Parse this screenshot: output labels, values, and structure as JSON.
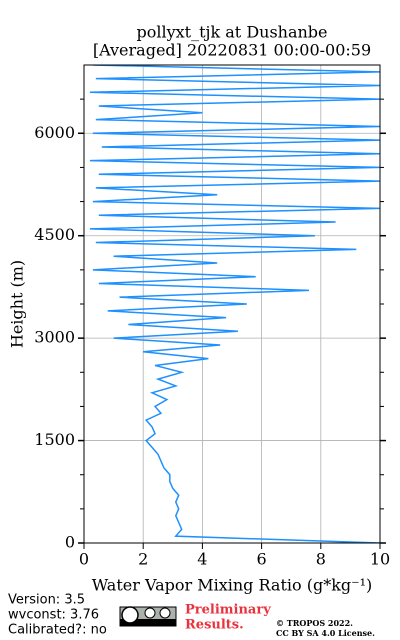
{
  "chart_data": {
    "type": "line",
    "title": "pollyxt_tjk at Dushanbe",
    "subtitle": "[Averaged] 20220831 00:00-00:59",
    "xlabel": "Water Vapor Mixing Ratio (g*kg⁻¹)",
    "ylabel": "Height (m)",
    "xlim": [
      0,
      10
    ],
    "xticks": [
      0,
      2,
      4,
      6,
      8,
      10
    ],
    "ylim": [
      0,
      7000
    ],
    "yticks": [
      0,
      1500,
      3000,
      4500,
      6000
    ],
    "yminorticks": [
      500,
      1000,
      2000,
      2500,
      3500,
      4000,
      5000,
      5500,
      6500
    ],
    "grid": true,
    "color": "#1e90ff",
    "heights": [
      0,
      100,
      200,
      300,
      400,
      500,
      600,
      700,
      800,
      900,
      1000,
      1100,
      1200,
      1300,
      1400,
      1500,
      1600,
      1700,
      1800,
      1900,
      2000,
      2100,
      2200,
      2300,
      2400,
      2500,
      2600,
      2700,
      2800,
      2900,
      3000,
      3100,
      3200,
      3300,
      3400,
      3500,
      3600,
      3700,
      3800,
      3900,
      4000,
      4100,
      4200,
      4300,
      4400,
      4500,
      4600,
      4700,
      4800,
      4900,
      5000,
      5100,
      5200,
      5300,
      5400,
      5500,
      5600,
      5700,
      5800,
      5900,
      6000,
      6100,
      6200,
      6300,
      6400,
      6500,
      6600,
      6700,
      6800,
      6900,
      7000
    ],
    "values": [
      10,
      3.1,
      3.3,
      3.2,
      3.1,
      3.2,
      3.1,
      3.2,
      3.0,
      2.9,
      2.9,
      2.7,
      2.6,
      2.5,
      2.3,
      2.1,
      2.4,
      2.3,
      2.1,
      2.6,
      2.4,
      2.8,
      2.3,
      3.1,
      2.5,
      3.3,
      2.4,
      4.2,
      2.0,
      4.6,
      1.0,
      5.2,
      1.5,
      4.8,
      0.8,
      5.5,
      1.2,
      7.6,
      0.5,
      5.8,
      0.3,
      4.5,
      1.0,
      9.2,
      0.4,
      7.8,
      0.2,
      8.5,
      0.5,
      10,
      0.3,
      4.5,
      0.4,
      10,
      0.5,
      10,
      0.2,
      10,
      0.6,
      10,
      0.3,
      10,
      0.4,
      4.0,
      0.5,
      10,
      0.2,
      10,
      0.4,
      10,
      0.3
    ],
    "footer": {
      "version": "Version: 3.5",
      "wvconst": "wvconst:   3.76",
      "calibrated": "Calibrated?: no",
      "preliminary": [
        "Preliminary",
        "Results."
      ],
      "copyright": "© TROPOS 2022.",
      "license": "CC BY SA 4.0 License."
    }
  }
}
